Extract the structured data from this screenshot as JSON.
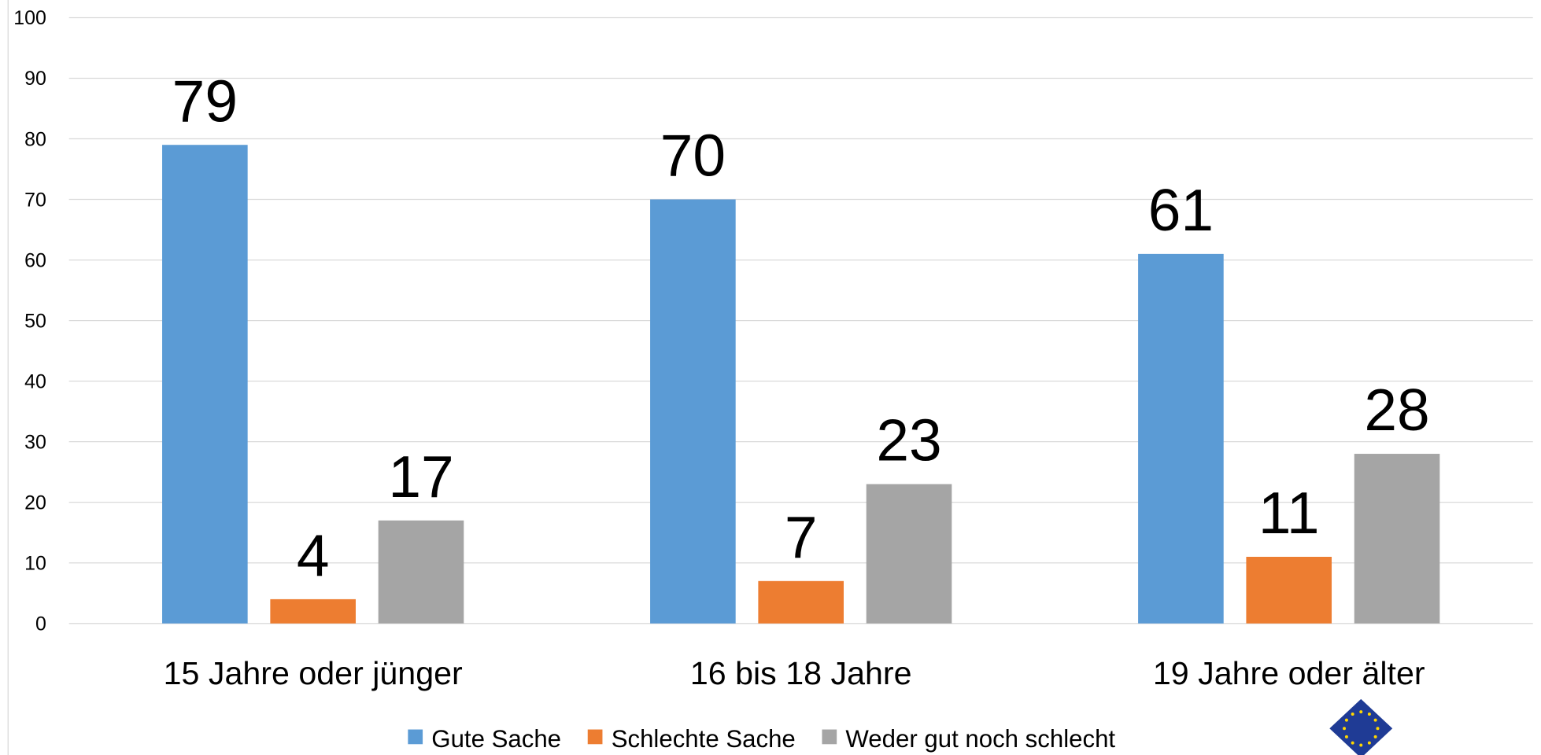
{
  "chart_data": {
    "type": "bar",
    "categories": [
      "15 Jahre oder jünger",
      "16 bis 18 Jahre",
      "19 Jahre oder älter"
    ],
    "series": [
      {
        "name": "Gute Sache",
        "color": "#5b9bd5",
        "values": [
          79,
          70,
          61
        ]
      },
      {
        "name": "Schlechte Sache",
        "color": "#ed7d31",
        "values": [
          4,
          7,
          11
        ]
      },
      {
        "name": "Weder gut noch schlecht",
        "color": "#a5a5a5",
        "values": [
          17,
          23,
          28
        ]
      }
    ],
    "ylim": [
      0,
      100
    ],
    "yticks": [
      0,
      10,
      20,
      30,
      40,
      50,
      60,
      70,
      80,
      90,
      100
    ],
    "grid": true,
    "legend": "bottom"
  }
}
